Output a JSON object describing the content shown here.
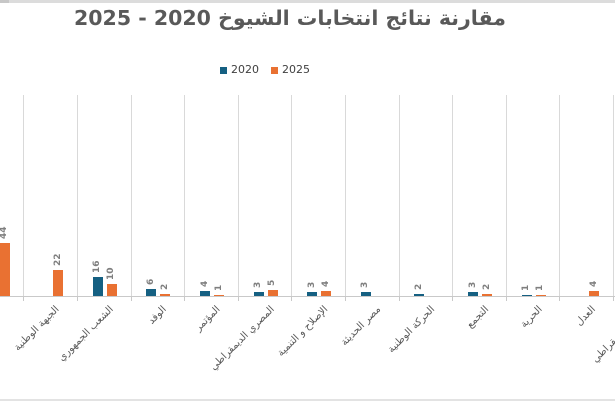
{
  "title": "مقارنة نتائج انتخابات الشيوخ 2020 - 2025",
  "legend": {
    "items": [
      {
        "label": "2020",
        "color": "#156082"
      },
      {
        "label": "2025",
        "color": "#E97132"
      }
    ]
  },
  "chart_data": {
    "type": "bar",
    "title": "مقارنة نتائج انتخابات الشيوخ 2020 - 2025",
    "legend_position": "top",
    "y_axis_visible": false,
    "ylim": [
      0,
      165
    ],
    "gridlines": "vertical-category-separators",
    "grid_color": "#D9D9D9",
    "axis_color": "#C9C9C9",
    "value_label_color": "#7F7F7F",
    "category_label_color": "#595959",
    "value_labels_rotation_deg": -90,
    "category_labels_rotation_deg": -45,
    "clipped_left": true,
    "clipped_right": true,
    "categories": [
      "",
      "الجبهة الوطنية",
      "الشعب الجمهوري",
      "الوفد",
      "المؤتمر",
      "المصري الديمقراطي",
      "الإصلاح و التنمية",
      "مصر الحديثة",
      "الحركة الوطنية",
      "التجمع",
      "الحرية",
      "العدل",
      "الجيل الديمقراطي"
    ],
    "series": [
      {
        "name": "2020",
        "color": "#156082",
        "values": [
          null,
          null,
          16,
          6,
          4,
          3,
          3,
          3,
          2,
          3,
          1,
          null,
          null
        ]
      },
      {
        "name": "2025",
        "color": "#E97132",
        "values": [
          44,
          22,
          10,
          2,
          1,
          5,
          4,
          null,
          null,
          2,
          1,
          4,
          null
        ]
      }
    ]
  }
}
